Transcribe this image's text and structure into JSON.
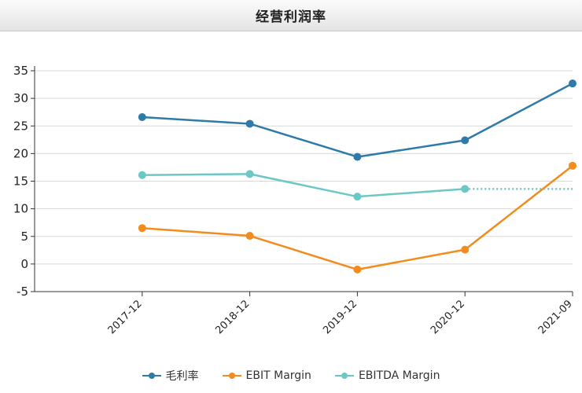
{
  "header": {
    "title": "经营利润率"
  },
  "chart_data": {
    "type": "line",
    "categories": [
      "2017-12",
      "2018-12",
      "2019-12",
      "2020-12",
      "2021-09"
    ],
    "ylim": [
      -5,
      35
    ],
    "yticks": [
      35,
      30,
      25,
      20,
      15,
      10,
      5,
      0,
      -5
    ],
    "grid": true,
    "legend_position": "bottom",
    "series": [
      {
        "name": "毛利率",
        "color": "#2e7aa8",
        "values": [
          26.6,
          25.4,
          19.4,
          22.4,
          32.7
        ]
      },
      {
        "name": "EBIT Margin",
        "color": "#f28c1e",
        "values": [
          6.5,
          5.1,
          -1.0,
          2.6,
          17.8
        ]
      },
      {
        "name": "EBITDA Margin",
        "color": "#6cc7c5",
        "values": [
          16.1,
          16.3,
          12.2,
          13.6,
          null
        ],
        "dotted_extension_value": 13.6
      }
    ]
  }
}
